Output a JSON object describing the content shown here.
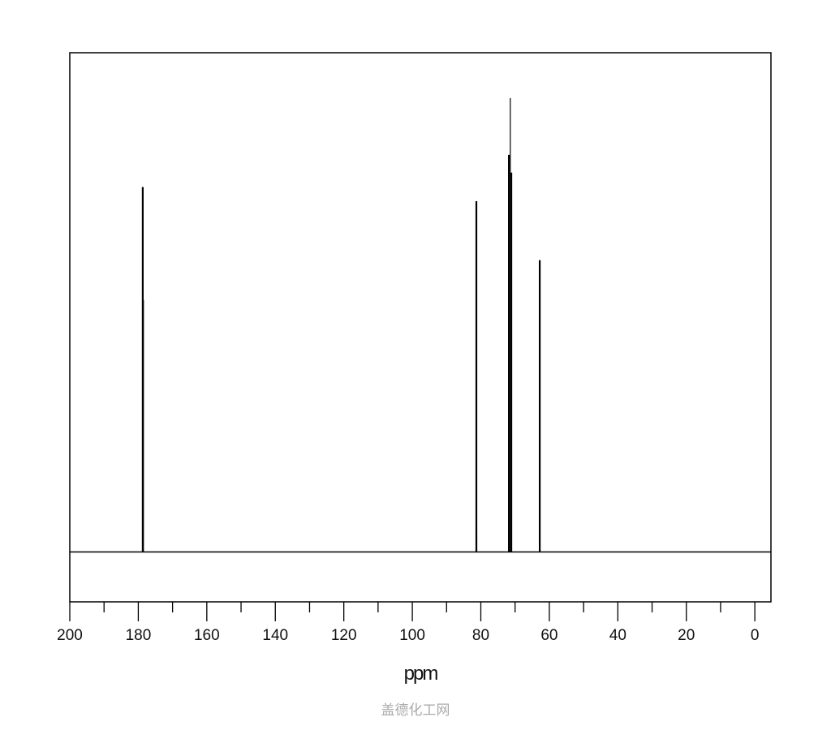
{
  "chart_data": {
    "type": "line",
    "title": "",
    "xlabel": "ppm",
    "ylabel": "",
    "xlim": [
      200,
      -4.7
    ],
    "x_reversed": true,
    "ylim": [
      -11,
      110
    ],
    "grid": false,
    "baseline": 0,
    "x_major_ticks": [
      200,
      180,
      160,
      140,
      120,
      100,
      80,
      60,
      40,
      20,
      0
    ],
    "x_minor_ticks": [
      190,
      170,
      150,
      130,
      110,
      90,
      70,
      50,
      30,
      10
    ],
    "peaks": [
      {
        "ppm": 178.7,
        "intensity": 80.4
      },
      {
        "ppm": 178.5,
        "intensity": 55.5
      },
      {
        "ppm": 81.3,
        "intensity": 77.3
      },
      {
        "ppm": 81.2,
        "intensity": 4.1
      },
      {
        "ppm": 71.8,
        "intensity": 87.5
      },
      {
        "ppm": 71.4,
        "intensity": 100
      },
      {
        "ppm": 71.1,
        "intensity": 83.6
      },
      {
        "ppm": 62.8,
        "intensity": 64.3
      }
    ],
    "colors": {
      "line": "#000000",
      "frame": "#000000"
    }
  },
  "watermark": "盖德化工网"
}
